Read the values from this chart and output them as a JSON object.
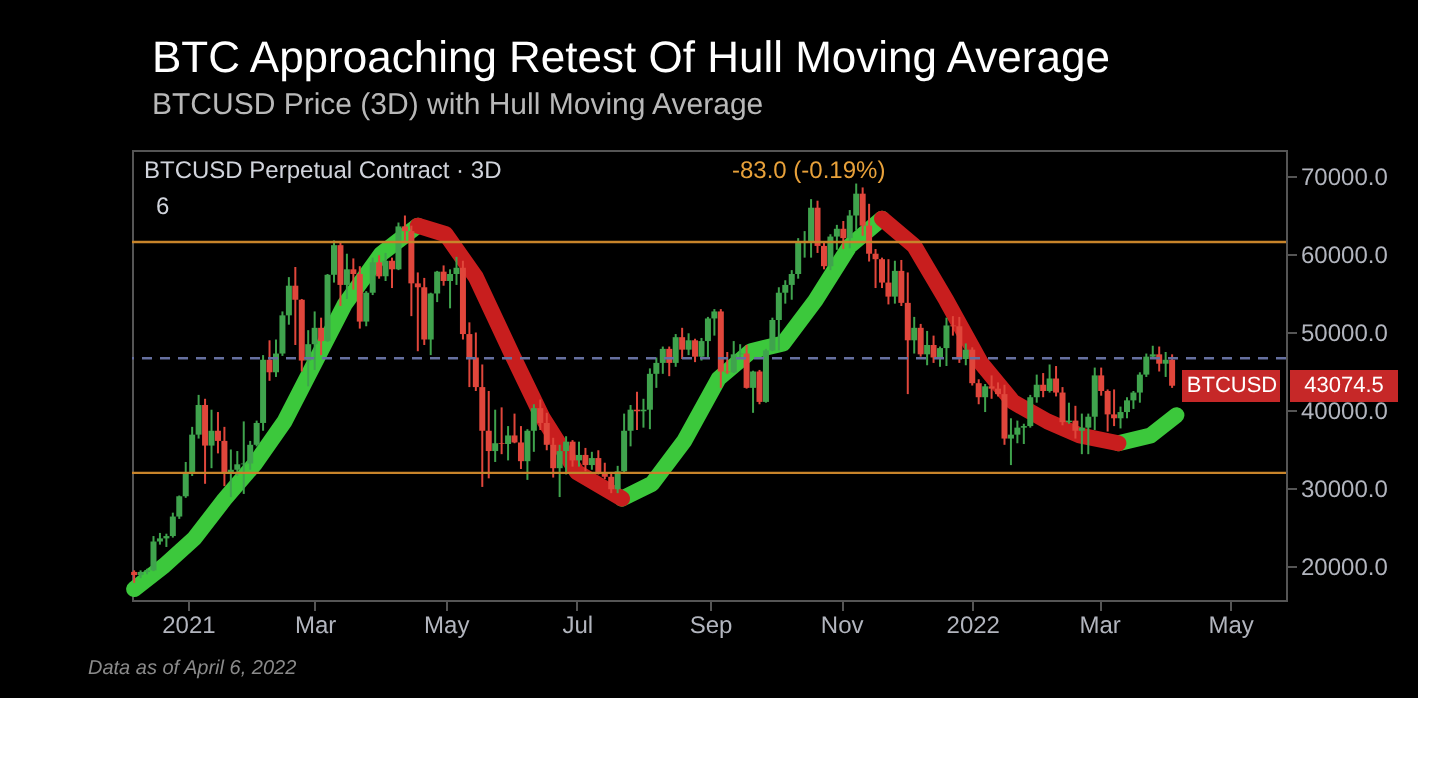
{
  "chart_data": {
    "type": "candlestick",
    "title": "BTC Approaching Retest Of Hull Moving Average",
    "subtitle": "BTCUSD Price (3D) with Hull Moving Average",
    "annotations": [
      "BTCUSD Perpetual Contract · 3D",
      "-83.0 (-0.19%)",
      "6",
      "BTCUSD",
      "43074.5",
      "Data as of April 6, 2022"
    ],
    "colors": [
      "#e0463b",
      "#3fa34d",
      "#3fa34d",
      "#3fa34d",
      "#3fa34d",
      "#3fa34d",
      "#3fa34d",
      "#3fa34d",
      "#3fa34d",
      "#3fa34d",
      "#3fa34d",
      "#e0463b",
      "#3fa34d",
      "#e0463b",
      "#e0463b",
      "#3fa34d",
      "#3fa34d",
      "#3fa34d",
      "#3fa34d",
      "#3fa34d",
      "#3fa34d",
      "#e0463b",
      "#3fa34d",
      "#3fa34d",
      "#3fa34d",
      "#e0463b",
      "#e0463b",
      "#3fa34d",
      "#3fa34d",
      "#e0463b",
      "#3fa34d",
      "#3fa34d",
      "#e0463b",
      "#3fa34d",
      "#e0463b",
      "#e0463b",
      "#3fa34d",
      "#3fa34d",
      "#e0463b",
      "#3fa34d",
      "#e0463b",
      "#3fa34d",
      "#e0463b",
      "#e0463b",
      "#e0463b",
      "#e0463b",
      "#3fa34d",
      "#3fa34d",
      "#e0463b",
      "#3fa34d",
      "#3fa34d",
      "#e0463b",
      "#e0463b",
      "#e0463b",
      "#e0463b",
      "#e0463b",
      "#3fa34d",
      "#e0463b",
      "#3fa34d",
      "#e0463b",
      "#e0463b",
      "#3fa34d",
      "#3fa34d",
      "#e0463b",
      "#e0463b",
      "#e0463b",
      "#3fa34d",
      "#3fa34d",
      "#e0463b",
      "#3fa34d",
      "#e0463b",
      "#3fa34d",
      "#e0463b",
      "#e0463b",
      "#e0463b",
      "#3fa34d",
      "#3fa34d",
      "#3fa34d",
      "#e0463b",
      "#3fa34d",
      "#3fa34d",
      "#3fa34d",
      "#3fa34d",
      "#e0463b",
      "#3fa34d",
      "#e0463b",
      "#3fa34d",
      "#e0463b",
      "#3fa34d",
      "#3fa34d",
      "#3fa34d",
      "#e0463b",
      "#e0463b",
      "#3fa34d",
      "#3fa34d",
      "#e0463b",
      "#3fa34d",
      "#e0463b",
      "#3fa34d",
      "#3fa34d",
      "#3fa34d",
      "#3fa34d",
      "#3fa34d",
      "#3fa34d",
      "#3fa34d",
      "#3fa34d",
      "#e0463b",
      "#e0463b",
      "#3fa34d",
      "#3fa34d",
      "#e0463b",
      "#3fa34d",
      "#3fa34d",
      "#e0463b",
      "#e0463b",
      "#e0463b",
      "#e0463b",
      "#e0463b",
      "#3fa34d",
      "#e0463b",
      "#e0463b",
      "#3fa34d",
      "#e0463b",
      "#3fa34d",
      "#e0463b",
      "#3fa34d",
      "#3fa34d",
      "#e0463b",
      "#e0463b",
      "#3fa34d",
      "#e0463b",
      "#e0463b",
      "#3fa34d",
      "#e0463b",
      "#e0463b",
      "#e0463b",
      "#3fa34d",
      "#3fa34d",
      "#3fa34d",
      "#3fa34d",
      "#3fa34d",
      "#e0463b",
      "#3fa34d",
      "#e0463b",
      "#e0463b",
      "#3fa34d",
      "#e0463b",
      "#3fa34d",
      "#3fa34d",
      "#3fa34d",
      "#e0463b",
      "#e0463b",
      "#e0463b",
      "#3fa34d",
      "#3fa34d",
      "#3fa34d",
      "#3fa34d",
      "#3fa34d",
      "#3fa34d",
      "#e0463b",
      "#3fa34d",
      "#e0463b"
    ],
    "x": [
      "2020-12-07",
      "2020-12-10",
      "2020-12-13",
      "2020-12-16",
      "2020-12-19",
      "2020-12-22",
      "2020-12-25",
      "2020-12-28",
      "2020-12-31",
      "2021-01-03",
      "2021-01-06",
      "2021-01-09",
      "2021-01-12",
      "2021-01-15",
      "2021-01-18",
      "2021-01-21",
      "2021-01-24",
      "2021-01-27",
      "2021-01-30",
      "2021-02-02",
      "2021-02-05",
      "2021-02-08",
      "2021-02-11",
      "2021-02-14",
      "2021-02-17",
      "2021-02-20",
      "2021-02-23",
      "2021-02-26",
      "2021-03-01",
      "2021-03-04",
      "2021-03-07",
      "2021-03-10",
      "2021-03-13",
      "2021-03-16",
      "2021-03-19",
      "2021-03-22",
      "2021-03-25",
      "2021-03-28",
      "2021-03-31",
      "2021-04-03",
      "2021-04-06",
      "2021-04-09",
      "2021-04-12",
      "2021-04-15",
      "2021-04-18",
      "2021-04-21",
      "2021-04-24",
      "2021-04-27",
      "2021-04-30",
      "2021-05-03",
      "2021-05-06",
      "2021-05-09",
      "2021-05-12",
      "2021-05-15",
      "2021-05-18",
      "2021-05-21",
      "2021-05-24",
      "2021-05-27",
      "2021-05-30",
      "2021-06-02",
      "2021-06-05",
      "2021-06-08",
      "2021-06-11",
      "2021-06-14",
      "2021-06-17",
      "2021-06-20",
      "2021-06-23",
      "2021-06-26",
      "2021-06-29",
      "2021-07-02",
      "2021-07-05",
      "2021-07-08",
      "2021-07-11",
      "2021-07-14",
      "2021-07-17",
      "2021-07-20",
      "2021-07-23",
      "2021-07-26",
      "2021-07-29",
      "2021-08-01",
      "2021-08-04",
      "2021-08-07",
      "2021-08-10",
      "2021-08-13",
      "2021-08-16",
      "2021-08-19",
      "2021-08-22",
      "2021-08-25",
      "2021-08-28",
      "2021-08-31",
      "2021-09-03",
      "2021-09-06",
      "2021-09-09",
      "2021-09-12",
      "2021-09-15",
      "2021-09-18",
      "2021-09-21",
      "2021-09-24",
      "2021-09-27",
      "2021-09-30",
      "2021-10-03",
      "2021-10-06",
      "2021-10-09",
      "2021-10-12",
      "2021-10-15",
      "2021-10-18",
      "2021-10-21",
      "2021-10-24",
      "2021-10-27",
      "2021-10-30",
      "2021-11-02",
      "2021-11-05",
      "2021-11-08",
      "2021-11-11",
      "2021-11-14",
      "2021-11-17",
      "2021-11-20",
      "2021-11-23",
      "2021-11-26",
      "2021-11-29",
      "2021-12-02",
      "2021-12-05",
      "2021-12-08",
      "2021-12-11",
      "2021-12-14",
      "2021-12-17",
      "2021-12-20",
      "2021-12-23",
      "2021-12-26",
      "2021-12-29",
      "2022-01-01",
      "2022-01-04",
      "2022-01-07",
      "2022-01-10",
      "2022-01-13",
      "2022-01-16",
      "2022-01-19",
      "2022-01-22",
      "2022-01-25",
      "2022-01-28",
      "2022-01-31",
      "2022-02-03",
      "2022-02-06",
      "2022-02-09",
      "2022-02-12",
      "2022-02-15",
      "2022-02-18",
      "2022-02-21",
      "2022-02-24",
      "2022-02-27",
      "2022-03-02",
      "2022-03-05",
      "2022-03-08",
      "2022-03-11",
      "2022-03-14",
      "2022-03-17",
      "2022-03-20",
      "2022-03-23",
      "2022-03-26",
      "2022-03-29",
      "2022-04-01",
      "2022-04-04"
    ],
    "ohlc": [
      [
        19200,
        19400,
        17800,
        18800
      ],
      [
        18800,
        19400,
        18400,
        19200
      ],
      [
        19200,
        19600,
        18900,
        19400
      ],
      [
        19400,
        23800,
        19300,
        23100
      ],
      [
        23100,
        24200,
        22700,
        23500
      ],
      [
        23500,
        24100,
        22400,
        23800
      ],
      [
        23800,
        26800,
        23600,
        26300
      ],
      [
        26300,
        29000,
        26000,
        28900
      ],
      [
        28900,
        33300,
        28700,
        32000
      ],
      [
        32000,
        37800,
        31500,
        36800
      ],
      [
        36800,
        41900,
        36300,
        40600
      ],
      [
        40600,
        41400,
        30500,
        35400
      ],
      [
        35400,
        40000,
        32500,
        37300
      ],
      [
        37300,
        39700,
        34400,
        36000
      ],
      [
        36000,
        37800,
        30200,
        32000
      ],
      [
        32000,
        34900,
        28800,
        32300
      ],
      [
        32300,
        34700,
        31500,
        33000
      ],
      [
        33000,
        38500,
        29200,
        33100
      ],
      [
        33100,
        36000,
        32300,
        35500
      ],
      [
        35500,
        38600,
        35300,
        38300
      ],
      [
        38300,
        47000,
        37300,
        46400
      ],
      [
        46400,
        48900,
        43700,
        44800
      ],
      [
        44800,
        49000,
        44200,
        47200
      ],
      [
        47200,
        52600,
        46900,
        52100
      ],
      [
        52100,
        57000,
        50900,
        55900
      ],
      [
        55900,
        58300,
        48300,
        54100
      ],
      [
        54100,
        54200,
        44900,
        46300
      ],
      [
        46300,
        50200,
        43000,
        48400
      ],
      [
        48400,
        52600,
        45100,
        50500
      ],
      [
        50500,
        51800,
        47000,
        48800
      ],
      [
        48800,
        57400,
        48700,
        57300
      ],
      [
        57300,
        61700,
        56300,
        61100
      ],
      [
        61100,
        61600,
        53300,
        56000
      ],
      [
        56000,
        60000,
        54200,
        58000
      ],
      [
        58000,
        59400,
        55400,
        57400
      ],
      [
        57400,
        58400,
        50400,
        51300
      ],
      [
        51300,
        55200,
        50700,
        55000
      ],
      [
        55000,
        59500,
        54700,
        58900
      ],
      [
        58900,
        59800,
        56800,
        57100
      ],
      [
        57100,
        60100,
        56500,
        59100
      ],
      [
        59100,
        59500,
        55600,
        58000
      ],
      [
        58000,
        64000,
        57900,
        63500
      ],
      [
        63500,
        64900,
        61700,
        62900
      ],
      [
        62900,
        63600,
        52000,
        56200
      ],
      [
        56200,
        57600,
        47500,
        55700
      ],
      [
        55700,
        56900,
        48300,
        49000
      ],
      [
        49000,
        55000,
        47000,
        54900
      ],
      [
        54900,
        57800,
        53800,
        57700
      ],
      [
        57700,
        58500,
        55900,
        56500
      ],
      [
        56500,
        58000,
        53000,
        57400
      ],
      [
        57400,
        59600,
        56000,
        58200
      ],
      [
        58200,
        59100,
        49000,
        49700
      ],
      [
        49700,
        51200,
        42900,
        46700
      ],
      [
        46700,
        49900,
        42400,
        42900
      ],
      [
        42900,
        45800,
        30100,
        37300
      ],
      [
        37300,
        42400,
        31200,
        34700
      ],
      [
        34700,
        40000,
        33300,
        35700
      ],
      [
        35700,
        40300,
        34300,
        35600
      ],
      [
        35600,
        37900,
        33500,
        36700
      ],
      [
        36700,
        39500,
        35700,
        35800
      ],
      [
        35800,
        37900,
        32400,
        33400
      ],
      [
        33400,
        37500,
        31000,
        37300
      ],
      [
        37300,
        40700,
        34600,
        40200
      ],
      [
        40200,
        41300,
        37400,
        38300
      ],
      [
        38300,
        39600,
        34800,
        35500
      ],
      [
        35500,
        36400,
        31300,
        32500
      ],
      [
        32500,
        35500,
        28800,
        34700
      ],
      [
        34700,
        36600,
        31700,
        35900
      ],
      [
        35900,
        36100,
        32700,
        33500
      ],
      [
        33500,
        35900,
        32700,
        34200
      ],
      [
        34200,
        35100,
        32100,
        32900
      ],
      [
        32900,
        34600,
        32300,
        33800
      ],
      [
        33800,
        34800,
        31700,
        31800
      ],
      [
        31800,
        33200,
        31100,
        31400
      ],
      [
        31400,
        32000,
        29300,
        29800
      ],
      [
        29800,
        32800,
        29300,
        32100
      ],
      [
        32100,
        39500,
        32000,
        37300
      ],
      [
        37300,
        40600,
        35300,
        40000
      ],
      [
        40000,
        42300,
        37400,
        39800
      ],
      [
        39800,
        41400,
        37700,
        40000
      ],
      [
        40000,
        45300,
        37500,
        44600
      ],
      [
        44600,
        46700,
        42800,
        46000
      ],
      [
        46000,
        48100,
        44600,
        47800
      ],
      [
        47800,
        48100,
        44300,
        46000
      ],
      [
        46000,
        49700,
        45500,
        49300
      ],
      [
        49300,
        50500,
        46500,
        47700
      ],
      [
        47700,
        49800,
        47000,
        48900
      ],
      [
        48900,
        49100,
        46100,
        46800
      ],
      [
        46800,
        49200,
        46300,
        48800
      ],
      [
        48800,
        51900,
        46700,
        51700
      ],
      [
        51700,
        52900,
        49500,
        52600
      ],
      [
        52600,
        52900,
        42800,
        44900
      ],
      [
        44900,
        47400,
        44600,
        44800
      ],
      [
        44800,
        48800,
        44700,
        47100
      ],
      [
        47100,
        48400,
        46700,
        47200
      ],
      [
        47200,
        48300,
        42700,
        42800
      ],
      [
        42800,
        45000,
        39600,
        44900
      ],
      [
        44900,
        45100,
        40700,
        41000
      ],
      [
        41000,
        47800,
        40900,
        47600
      ],
      [
        47600,
        51800,
        47500,
        51500
      ],
      [
        51500,
        55700,
        47600,
        55000
      ],
      [
        55000,
        56600,
        53600,
        56000
      ],
      [
        56000,
        57900,
        54100,
        57400
      ],
      [
        57400,
        62000,
        56800,
        61500
      ],
      [
        61500,
        62900,
        59500,
        61600
      ],
      [
        61600,
        67000,
        59500,
        65900
      ],
      [
        65900,
        66800,
        60100,
        61000
      ],
      [
        61000,
        61600,
        58000,
        58400
      ],
      [
        58400,
        62500,
        57900,
        62200
      ],
      [
        62200,
        63700,
        60500,
        63200
      ],
      [
        63200,
        64200,
        60600,
        62000
      ],
      [
        62000,
        65600,
        60700,
        64900
      ],
      [
        64900,
        69000,
        63000,
        67700
      ],
      [
        67700,
        68500,
        62300,
        63600
      ],
      [
        63600,
        66400,
        59000,
        60000
      ],
      [
        60000,
        60600,
        55600,
        59300
      ],
      [
        59300,
        59500,
        55600,
        56300
      ],
      [
        56300,
        59300,
        53500,
        54500
      ],
      [
        54500,
        59100,
        53600,
        57800
      ],
      [
        57800,
        59200,
        53300,
        53700
      ],
      [
        53700,
        57600,
        42000,
        48900
      ],
      [
        48900,
        51900,
        47200,
        50500
      ],
      [
        50500,
        51000,
        46800,
        47100
      ],
      [
        47100,
        50100,
        45700,
        48300
      ],
      [
        48300,
        49500,
        46000,
        46700
      ],
      [
        46700,
        48100,
        45500,
        47900
      ],
      [
        47900,
        51800,
        45600,
        50800
      ],
      [
        50800,
        52000,
        49500,
        50700
      ],
      [
        50700,
        51900,
        46000,
        46500
      ],
      [
        46500,
        48500,
        45700,
        47700
      ],
      [
        47700,
        48000,
        43100,
        43400
      ],
      [
        43400,
        43900,
        40700,
        41600
      ],
      [
        41600,
        43300,
        39700,
        43000
      ],
      [
        43000,
        44400,
        41400,
        42700
      ],
      [
        42700,
        43500,
        41700,
        42000
      ],
      [
        42000,
        43200,
        35500,
        36300
      ],
      [
        36300,
        38900,
        32900,
        36800
      ],
      [
        36800,
        38600,
        35700,
        37700
      ],
      [
        37700,
        38200,
        35600,
        37900
      ],
      [
        37900,
        41900,
        37700,
        41600
      ],
      [
        41600,
        44500,
        40900,
        43200
      ],
      [
        43200,
        44700,
        41600,
        42400
      ],
      [
        42400,
        45800,
        42200,
        44000
      ],
      [
        44000,
        45600,
        41700,
        42200
      ],
      [
        42200,
        42900,
        38000,
        38400
      ],
      [
        38400,
        40900,
        38200,
        38600
      ],
      [
        38600,
        40500,
        36300,
        37300
      ],
      [
        37300,
        39500,
        34300,
        37700
      ],
      [
        37700,
        39500,
        34300,
        39100
      ],
      [
        39100,
        45400,
        37400,
        44400
      ],
      [
        44400,
        45400,
        41800,
        42400
      ],
      [
        42400,
        42600,
        37200,
        39400
      ],
      [
        39400,
        42600,
        37900,
        38900
      ],
      [
        38900,
        40400,
        37600,
        39700
      ],
      [
        39700,
        41600,
        38900,
        41200
      ],
      [
        41200,
        42400,
        40100,
        42200
      ],
      [
        42200,
        44800,
        40900,
        44500
      ],
      [
        44500,
        47200,
        44200,
        46800
      ],
      [
        46800,
        48200,
        46600,
        47100
      ],
      [
        47100,
        48100,
        44900,
        45900
      ],
      [
        45900,
        47400,
        44200,
        46400
      ],
      [
        46400,
        47100,
        42800,
        43074.5
      ]
    ],
    "series": [
      {
        "type": "line",
        "color": "#3cc83c",
        "x": [
          "2020-12-07",
          "2020-12-21",
          "2021-01-04",
          "2021-01-18",
          "2021-02-01",
          "2021-02-15",
          "2021-03-01",
          "2021-03-15",
          "2021-04-01",
          "2021-04-18",
          "2021-05-01",
          "2021-07-22",
          "2021-08-05",
          "2021-08-20",
          "2021-09-05",
          "2021-09-20",
          "2021-10-05",
          "2021-10-20",
          "2021-11-05",
          "2021-11-20",
          "2021-12-05",
          "2022-03-10",
          "2022-03-25",
          "2022-04-06"
        ],
        "values": [
          17000,
          20000,
          23500,
          28500,
          33000,
          38500,
          46000,
          53500,
          60000,
          63600,
          null,
          28600,
          30500,
          36000,
          44000,
          47500,
          48500,
          54000,
          61000,
          64500,
          null,
          35700,
          36700,
          39300
        ]
      },
      {
        "type": "line",
        "color": "#c81e1e",
        "x": [
          "2021-04-18",
          "2021-05-01",
          "2021-05-15",
          "2021-06-01",
          "2021-06-15",
          "2021-07-01",
          "2021-07-22",
          "2021-08-05",
          "2021-11-20",
          "2021-12-05",
          "2021-12-20",
          "2022-01-05",
          "2022-01-20",
          "2022-02-05",
          "2022-02-20",
          "2022-03-10"
        ],
        "values": [
          63600,
          62500,
          57000,
          47000,
          39000,
          32000,
          28600,
          null,
          64500,
          61000,
          54000,
          46000,
          41000,
          38500,
          36700,
          35700
        ]
      }
    ],
    "ref_lines": [
      {
        "axis": "y",
        "value": 61500,
        "color": "#c8842a"
      },
      {
        "axis": "y",
        "value": 31900,
        "color": "#c8842a"
      },
      {
        "axis": "y",
        "value": 46600,
        "color": "#6670a0",
        "line_style": "dashed"
      }
    ],
    "xlim": [
      "2020-12-06",
      "2022-05-27"
    ],
    "xticks": [
      {
        "value": "2021-01-01",
        "label": "2021"
      },
      {
        "value": "2021-03-01",
        "label": "Mar"
      },
      {
        "value": "2021-05-01",
        "label": "May"
      },
      {
        "value": "2021-07-01",
        "label": "Jul"
      },
      {
        "value": "2021-09-01",
        "label": "Sep"
      },
      {
        "value": "2021-11-01",
        "label": "Nov"
      },
      {
        "value": "2022-01-01",
        "label": "2022"
      },
      {
        "value": "2022-03-01",
        "label": "Mar"
      },
      {
        "value": "2022-05-01",
        "label": "May"
      }
    ],
    "ylim": [
      15600,
      73300
    ],
    "yticks": [
      {
        "value": 20000,
        "label": "20000.0"
      },
      {
        "value": 30000,
        "label": "30000.0"
      },
      {
        "value": 40000,
        "label": "40000.0"
      },
      {
        "value": 50000,
        "label": "50000.0"
      },
      {
        "value": 60000,
        "label": "60000.0"
      },
      {
        "value": 70000,
        "label": "70000.0"
      }
    ]
  }
}
